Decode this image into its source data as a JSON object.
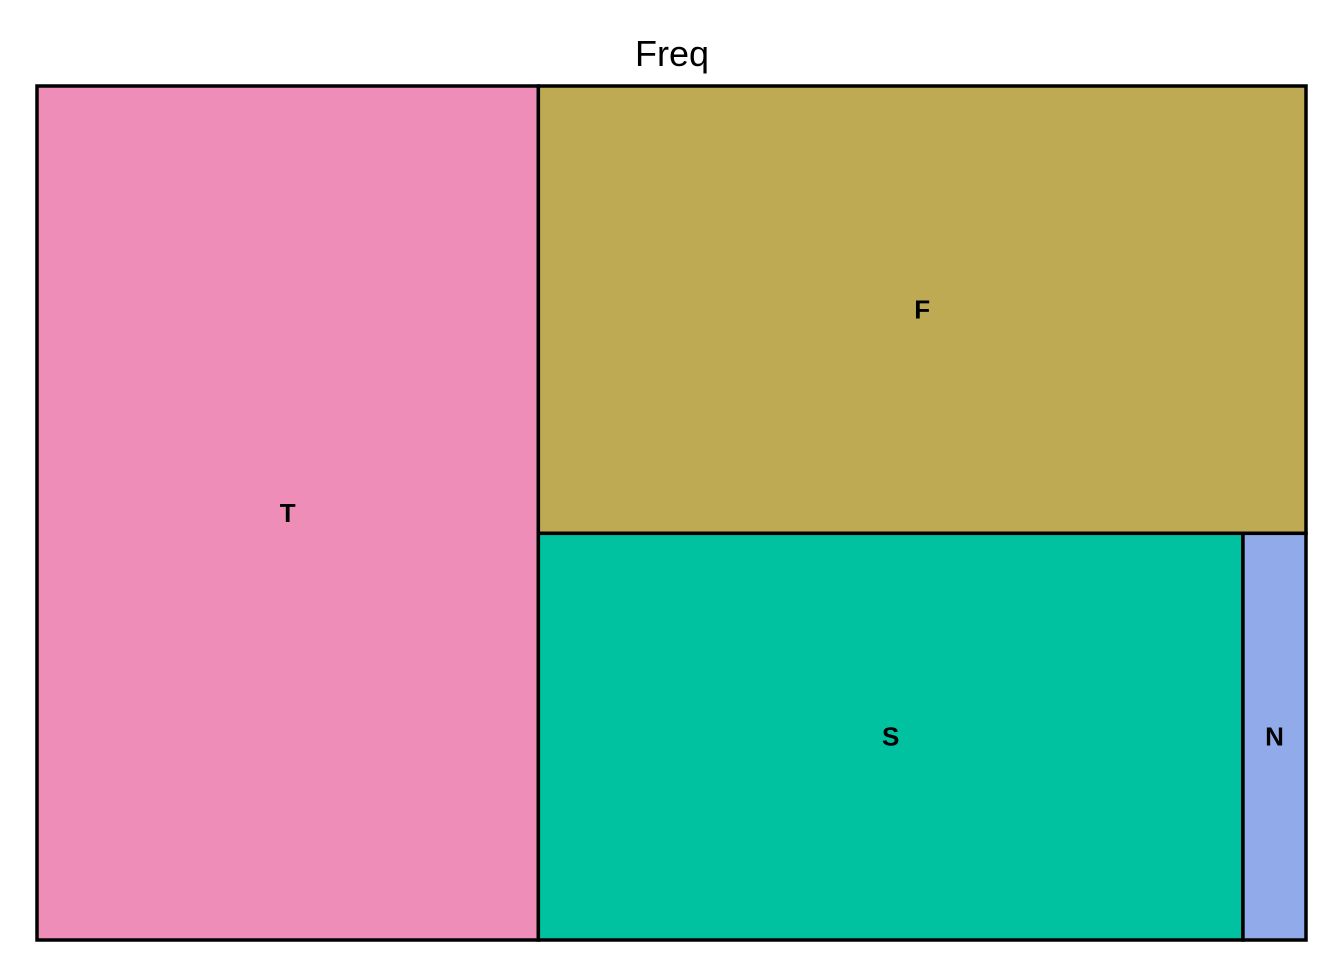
{
  "chart_data": {
    "type": "treemap",
    "title": "Freq",
    "tiles": [
      {
        "label": "T",
        "value": 38.4,
        "color": "#EE8DB7"
      },
      {
        "label": "F",
        "value": 30.8,
        "color": "#BDAA52"
      },
      {
        "label": "S",
        "value": 25.7,
        "color": "#00C1A0"
      },
      {
        "label": "N",
        "value": 2.3,
        "color": "#91ABEA"
      }
    ]
  }
}
